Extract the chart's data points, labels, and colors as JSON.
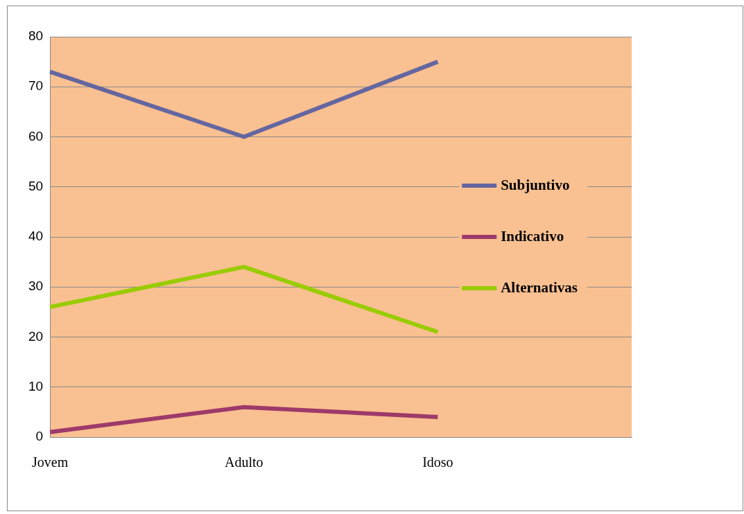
{
  "chart_data": {
    "type": "line",
    "categories": [
      "Jovem",
      "Adulto",
      "Idoso",
      null
    ],
    "series": [
      {
        "name": "Subjuntivo",
        "color": "#6466a0",
        "values": [
          73,
          60,
          75,
          null
        ]
      },
      {
        "name": "Indicativo",
        "color": "#9e3a6a",
        "values": [
          1,
          6,
          4,
          null
        ]
      },
      {
        "name": "Alternativas",
        "color": "#99cc00",
        "values": [
          26,
          34,
          21,
          null
        ]
      }
    ],
    "ylim": [
      0,
      80
    ],
    "yticks": [
      0,
      10,
      20,
      30,
      40,
      50,
      60,
      70,
      80
    ],
    "grid": "y",
    "legend": "right",
    "marker": "none",
    "line_style": "solid"
  }
}
